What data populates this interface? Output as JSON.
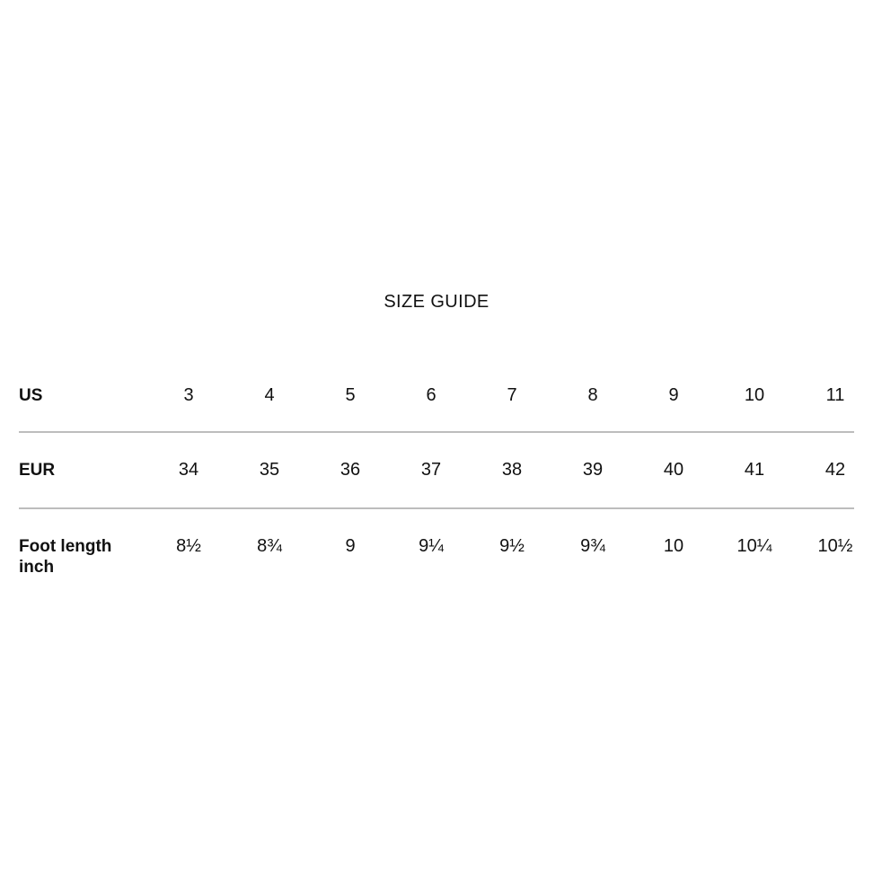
{
  "page": {
    "background_color": "#ffffff",
    "text_color": "#111111",
    "divider_color": "#bdbdbd"
  },
  "title": "SIZE GUIDE",
  "size_table": {
    "rows": [
      {
        "label": "US",
        "values": [
          "3",
          "4",
          "5",
          "6",
          "7",
          "8",
          "9",
          "10",
          "11"
        ]
      },
      {
        "label": "EUR",
        "values": [
          "34",
          "35",
          "36",
          "37",
          "38",
          "39",
          "40",
          "41",
          "42"
        ]
      },
      {
        "label": "Foot length inch",
        "values": [
          "8½",
          "8¾",
          "9",
          "9¼",
          "9½",
          "9¾",
          "10",
          "10¼",
          "10½"
        ]
      }
    ]
  }
}
